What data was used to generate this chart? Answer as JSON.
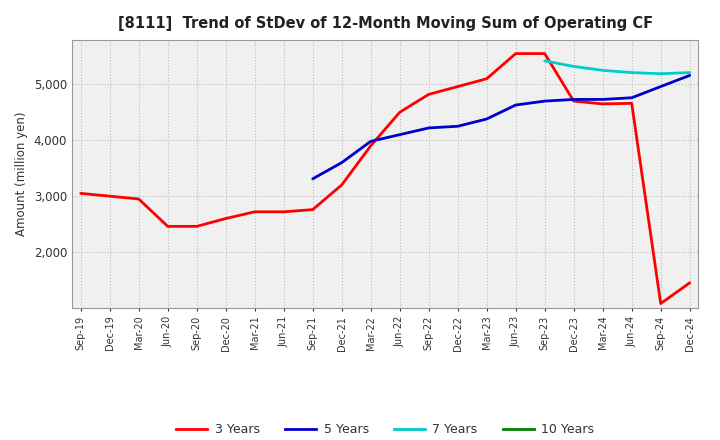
{
  "title": "[8111]  Trend of StDev of 12-Month Moving Sum of Operating CF",
  "ylabel": "Amount (million yen)",
  "background_color": "#ffffff",
  "plot_bg_color": "#f0f0f0",
  "grid_color": "#bbbbbb",
  "ylim": [
    1000,
    5800
  ],
  "yticks": [
    2000,
    3000,
    4000,
    5000
  ],
  "x_labels": [
    "Sep-19",
    "Dec-19",
    "Mar-20",
    "Jun-20",
    "Sep-20",
    "Dec-20",
    "Mar-21",
    "Jun-21",
    "Sep-21",
    "Dec-21",
    "Mar-22",
    "Jun-22",
    "Sep-22",
    "Dec-22",
    "Mar-23",
    "Jun-23",
    "Sep-23",
    "Dec-23",
    "Mar-24",
    "Jun-24",
    "Sep-24",
    "Dec-24"
  ],
  "series": {
    "3 Years": {
      "color": "#ff0000",
      "linewidth": 2.0,
      "data": [
        3050,
        3000,
        2950,
        2460,
        2460,
        2600,
        2720,
        2720,
        2760,
        3200,
        3900,
        4500,
        4820,
        4960,
        5100,
        5550,
        5550,
        4700,
        4650,
        4660,
        1080,
        1450
      ]
    },
    "5 Years": {
      "color": "#0000cc",
      "linewidth": 2.0,
      "data": [
        null,
        null,
        null,
        null,
        null,
        null,
        null,
        null,
        3310,
        3600,
        3980,
        4100,
        4220,
        4250,
        4380,
        4630,
        4700,
        4730,
        4730,
        4760,
        4960,
        5160
      ]
    },
    "7 Years": {
      "color": "#00cccc",
      "linewidth": 2.0,
      "data": [
        null,
        null,
        null,
        null,
        null,
        null,
        null,
        null,
        null,
        null,
        null,
        null,
        null,
        null,
        null,
        null,
        5420,
        5320,
        5250,
        5210,
        5190,
        5210
      ]
    },
    "10 Years": {
      "color": "#008000",
      "linewidth": 2.0,
      "data": [
        null,
        null,
        null,
        null,
        null,
        null,
        null,
        null,
        null,
        null,
        null,
        null,
        null,
        null,
        null,
        null,
        null,
        null,
        null,
        null,
        null,
        null
      ]
    }
  },
  "legend_entries": [
    "3 Years",
    "5 Years",
    "7 Years",
    "10 Years"
  ],
  "legend_colors": [
    "#ff0000",
    "#0000cc",
    "#00cccc",
    "#008000"
  ]
}
